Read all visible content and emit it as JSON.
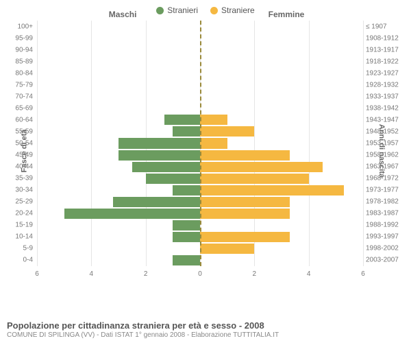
{
  "legend": {
    "male": {
      "label": "Stranieri",
      "color": "#6b9c5f"
    },
    "female": {
      "label": "Straniere",
      "color": "#f5b841"
    }
  },
  "headers": {
    "left": "Maschi",
    "right": "Femmine"
  },
  "axis_labels": {
    "left": "Fasce di età",
    "right": "Anni di nascita"
  },
  "chart": {
    "type": "population-pyramid",
    "xmax": 6,
    "xticks": [
      6,
      4,
      2,
      0,
      2,
      4,
      6
    ],
    "bar_color_m": "#6b9c5f",
    "bar_color_f": "#f5b841",
    "grid_color": "#e5e5e5",
    "center_color": "#9a8a3a",
    "background_color": "#ffffff",
    "label_fontsize": 10,
    "rows": [
      {
        "age": "100+",
        "year": "≤ 1907",
        "m": 0,
        "f": 0
      },
      {
        "age": "95-99",
        "year": "1908-1912",
        "m": 0,
        "f": 0
      },
      {
        "age": "90-94",
        "year": "1913-1917",
        "m": 0,
        "f": 0
      },
      {
        "age": "85-89",
        "year": "1918-1922",
        "m": 0,
        "f": 0
      },
      {
        "age": "80-84",
        "year": "1923-1927",
        "m": 0,
        "f": 0
      },
      {
        "age": "75-79",
        "year": "1928-1932",
        "m": 0,
        "f": 0
      },
      {
        "age": "70-74",
        "year": "1933-1937",
        "m": 0,
        "f": 0
      },
      {
        "age": "65-69",
        "year": "1938-1942",
        "m": 0,
        "f": 0
      },
      {
        "age": "60-64",
        "year": "1943-1947",
        "m": 1.3,
        "f": 1.0
      },
      {
        "age": "55-59",
        "year": "1948-1952",
        "m": 1.0,
        "f": 2.0
      },
      {
        "age": "50-54",
        "year": "1953-1957",
        "m": 3.0,
        "f": 1.0
      },
      {
        "age": "45-49",
        "year": "1958-1962",
        "m": 3.0,
        "f": 3.3
      },
      {
        "age": "40-44",
        "year": "1963-1967",
        "m": 2.5,
        "f": 4.5
      },
      {
        "age": "35-39",
        "year": "1968-1972",
        "m": 2.0,
        "f": 4.0
      },
      {
        "age": "30-34",
        "year": "1973-1977",
        "m": 1.0,
        "f": 5.3
      },
      {
        "age": "25-29",
        "year": "1978-1982",
        "m": 3.2,
        "f": 3.3
      },
      {
        "age": "20-24",
        "year": "1983-1987",
        "m": 5.0,
        "f": 3.3
      },
      {
        "age": "15-19",
        "year": "1988-1992",
        "m": 1.0,
        "f": 0
      },
      {
        "age": "10-14",
        "year": "1993-1997",
        "m": 1.0,
        "f": 3.3
      },
      {
        "age": "5-9",
        "year": "1998-2002",
        "m": 0,
        "f": 2.0
      },
      {
        "age": "0-4",
        "year": "2003-2007",
        "m": 1.0,
        "f": 0
      }
    ]
  },
  "footer": {
    "title": "Popolazione per cittadinanza straniera per età e sesso - 2008",
    "subtitle": "COMUNE DI SPILINGA (VV) - Dati ISTAT 1° gennaio 2008 - Elaborazione TUTTITALIA.IT"
  }
}
